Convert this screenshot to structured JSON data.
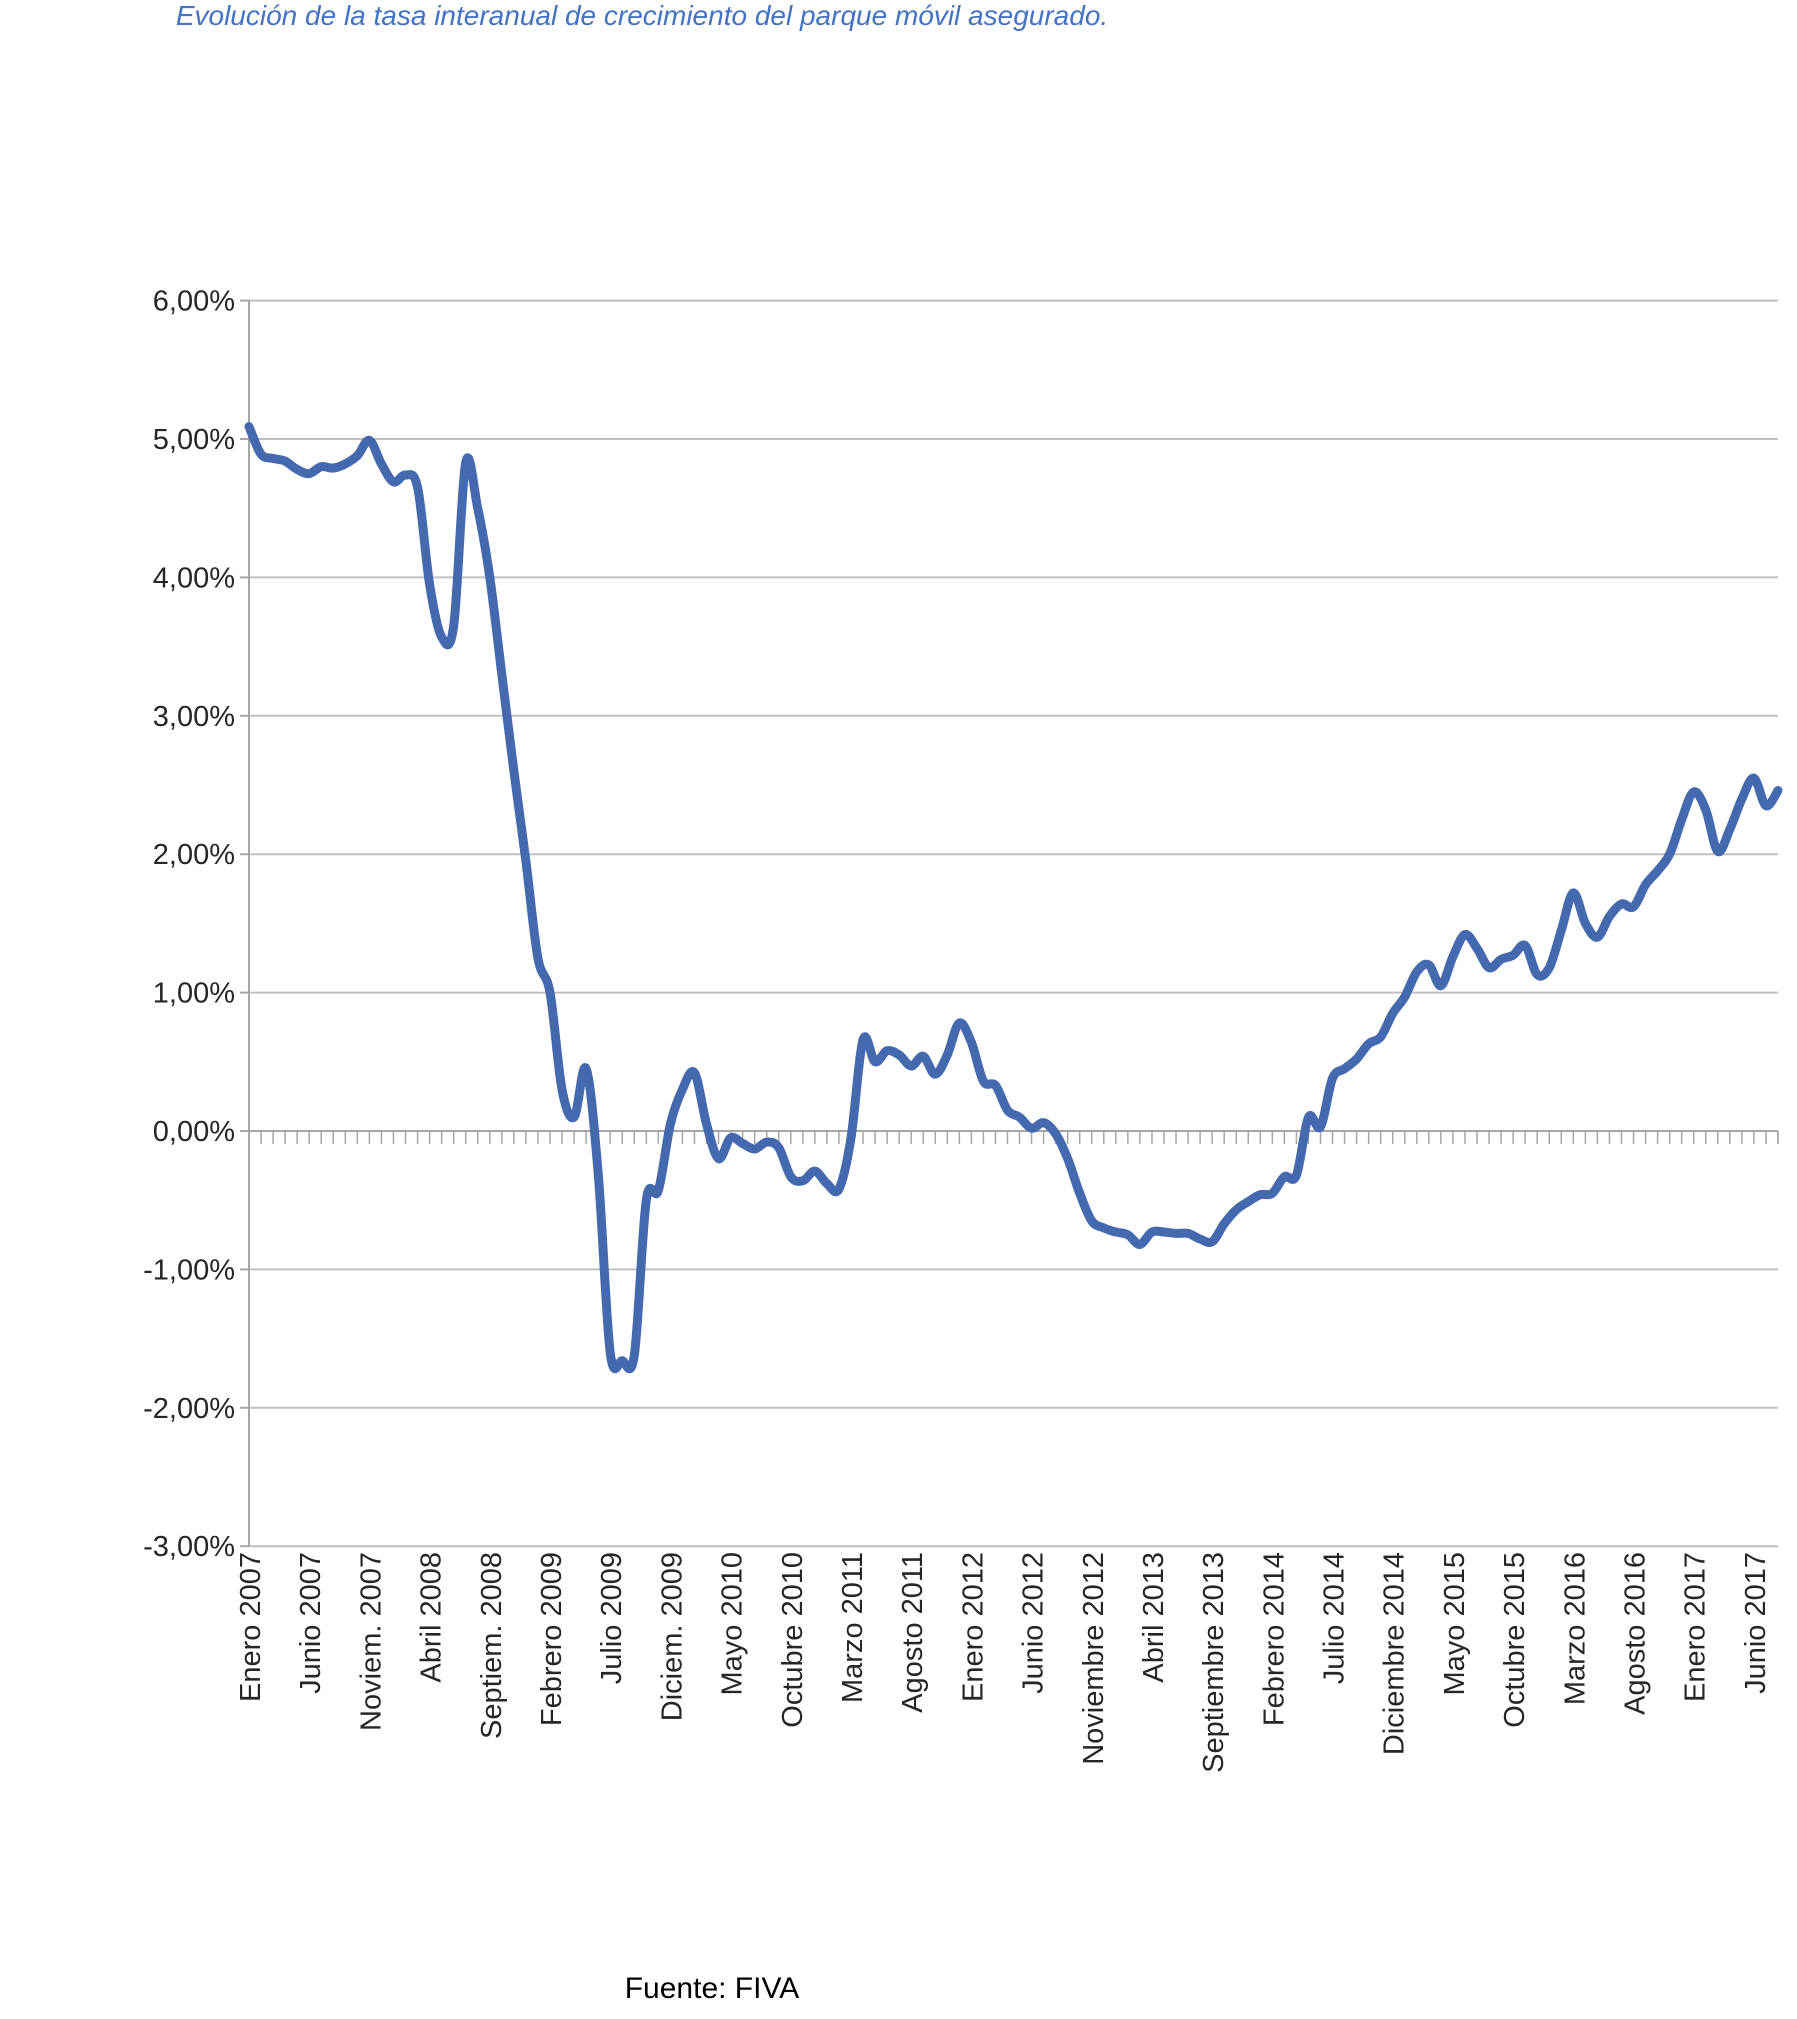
{
  "header": {
    "title": "Evolución de la tasa interanual de crecimiento del parque móvil asegurado."
  },
  "footer": {
    "source": "Fuente: FIVA"
  },
  "colors": {
    "title": "#4472C4",
    "line": "#4569AE",
    "grid": "#C0C0C0",
    "axis": "#A6A6A6",
    "tick_label": "#262626"
  },
  "chart_data": {
    "type": "line",
    "title": "Evolución de la tasa interanual de crecimiento del parque móvil asegurado.",
    "unit": "%",
    "ylim": [
      -3,
      6
    ],
    "grid": true,
    "legend": "none",
    "y_tick_labels": [
      "6,00%",
      "5,00%",
      "4,00%",
      "3,00%",
      "2,00%",
      "1,00%",
      "0,00%",
      "-1,00%",
      "-2,00%",
      "-3,00%"
    ],
    "x_tick_labels": [
      "Enero 2007",
      "Junio 2007",
      "Noviem. 2007",
      "Abril 2008",
      "Septiem. 2008",
      "Febrero 2009",
      "Julio 2009",
      "Diciem. 2009",
      "Mayo 2010",
      "Octubre 2010",
      "Marzo 2011",
      "Agosto 2011",
      "Enero 2012",
      "Junio 2012",
      "Noviembre 2012",
      "Abril 2013",
      "Septiembre 2013",
      "Febrero 2014",
      "Julio 2014",
      "Diciembre 2014",
      "Mayo 2015",
      "Octubre 2015",
      "Marzo 2016",
      "Agosto 2016",
      "Enero 2017",
      "Junio 2017"
    ],
    "x_tick_every": 5,
    "x_is_monthly_from": "Enero 2007",
    "values": [
      5.09,
      4.89,
      4.86,
      4.84,
      4.78,
      4.75,
      4.8,
      4.79,
      4.82,
      4.88,
      4.99,
      4.82,
      4.69,
      4.74,
      4.65,
      3.95,
      3.57,
      3.65,
      4.83,
      4.5,
      4.0,
      3.3,
      2.6,
      1.95,
      1.25,
      1.0,
      0.3,
      0.1,
      0.45,
      -0.3,
      -1.6,
      -1.66,
      -1.62,
      -0.5,
      -0.43,
      0.05,
      0.3,
      0.42,
      0.05,
      -0.2,
      -0.05,
      -0.09,
      -0.13,
      -0.08,
      -0.12,
      -0.33,
      -0.36,
      -0.29,
      -0.38,
      -0.42,
      -0.05,
      0.66,
      0.5,
      0.58,
      0.55,
      0.47,
      0.54,
      0.41,
      0.55,
      0.78,
      0.64,
      0.36,
      0.33,
      0.15,
      0.1,
      0.02,
      0.06,
      -0.02,
      -0.2,
      -0.45,
      -0.65,
      -0.7,
      -0.73,
      -0.75,
      -0.82,
      -0.73,
      -0.73,
      -0.74,
      -0.74,
      -0.78,
      -0.8,
      -0.67,
      -0.57,
      -0.51,
      -0.46,
      -0.45,
      -0.33,
      -0.32,
      0.1,
      0.03,
      0.38,
      0.45,
      0.52,
      0.63,
      0.68,
      0.85,
      0.97,
      1.15,
      1.2,
      1.05,
      1.26,
      1.42,
      1.32,
      1.18,
      1.24,
      1.27,
      1.34,
      1.13,
      1.18,
      1.45,
      1.72,
      1.5,
      1.4,
      1.55,
      1.64,
      1.62,
      1.78,
      1.88,
      2.0,
      2.25,
      2.45,
      2.32,
      2.02,
      2.18,
      2.4,
      2.55,
      2.35,
      2.46
    ]
  }
}
